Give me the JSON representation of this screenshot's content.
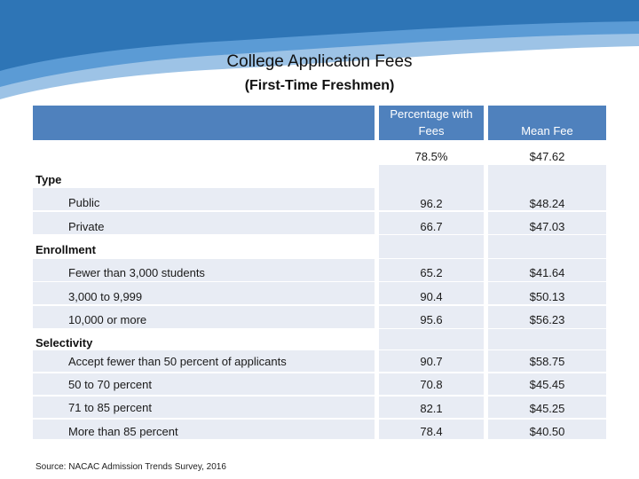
{
  "title": "College Application Fees",
  "subtitle": "(First-Time Freshmen)",
  "columns": {
    "pct": "Percentage with Fees",
    "fee": "Mean Fee"
  },
  "overall": {
    "pct": "78.5%",
    "fee": "$47.62"
  },
  "groups": {
    "type": "Type",
    "enrollment": "Enrollment",
    "selectivity": "Selectivity"
  },
  "rows": [
    {
      "label": "Public",
      "pct": "96.2",
      "fee": "$48.24"
    },
    {
      "label": "Private",
      "pct": "66.7",
      "fee": "$47.03"
    },
    {
      "label": "Fewer than 3,000 students",
      "pct": "65.2",
      "fee": "$41.64"
    },
    {
      "label": "3,000 to 9,999",
      "pct": "90.4",
      "fee": "$50.13"
    },
    {
      "label": "10,000 or more",
      "pct": "95.6",
      "fee": "$56.23"
    },
    {
      "label": "Accept fewer than 50 percent of applicants",
      "pct": "90.7",
      "fee": "$58.75"
    },
    {
      "label": "50 to 70 percent",
      "pct": "70.8",
      "fee": "$45.45"
    },
    {
      "label": "71 to 85 percent",
      "pct": "82.1",
      "fee": "$45.25"
    },
    {
      "label": "More than 85 percent",
      "pct": "78.4",
      "fee": "$40.50"
    }
  ],
  "source": "Source: NACAC Admission Trends Survey, 2016",
  "colors": {
    "header": "#4f81bd",
    "band": "#e8ecf4",
    "wave_dark": "#2e75b6",
    "wave_light": "#9dc3e6"
  }
}
